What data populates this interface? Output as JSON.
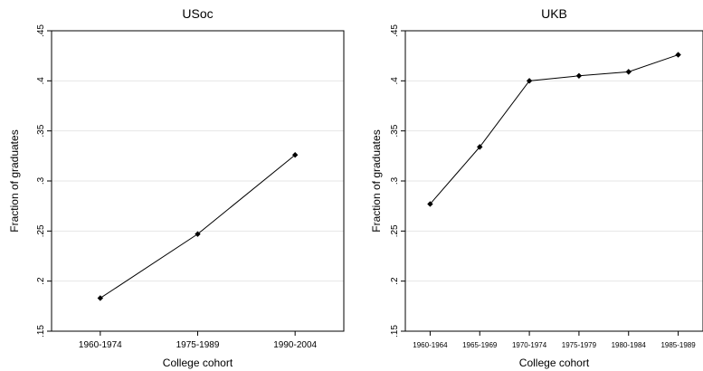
{
  "chart_data": [
    {
      "type": "line",
      "title": "USoc",
      "xlabel": "College cohort",
      "ylabel": "Fraction of graduates",
      "categories": [
        "1960-1974",
        "1975-1989",
        "1990-2004"
      ],
      "values": [
        0.183,
        0.247,
        0.326
      ],
      "ylim": [
        0.15,
        0.45
      ],
      "yticks": [
        ".15",
        ".2",
        ".25",
        ".3",
        ".35",
        ".4",
        ".45"
      ],
      "ytick_values": [
        0.15,
        0.2,
        0.25,
        0.3,
        0.35,
        0.4,
        0.45
      ],
      "grid": true,
      "marker": "diamond"
    },
    {
      "type": "line",
      "title": "UKB",
      "xlabel": "College cohort",
      "ylabel": "Fraction of graduates",
      "categories": [
        "1960-1964",
        "1965-1969",
        "1970-1974",
        "1975-1979",
        "1980-1984",
        "1985-1989"
      ],
      "values": [
        0.277,
        0.334,
        0.4,
        0.405,
        0.409,
        0.426
      ],
      "ylim": [
        0.15,
        0.45
      ],
      "yticks": [
        ".15",
        ".2",
        ".25",
        ".3",
        ".35",
        ".4",
        ".45"
      ],
      "ytick_values": [
        0.15,
        0.2,
        0.25,
        0.3,
        0.35,
        0.4,
        0.45
      ],
      "grid": true,
      "marker": "diamond"
    }
  ]
}
